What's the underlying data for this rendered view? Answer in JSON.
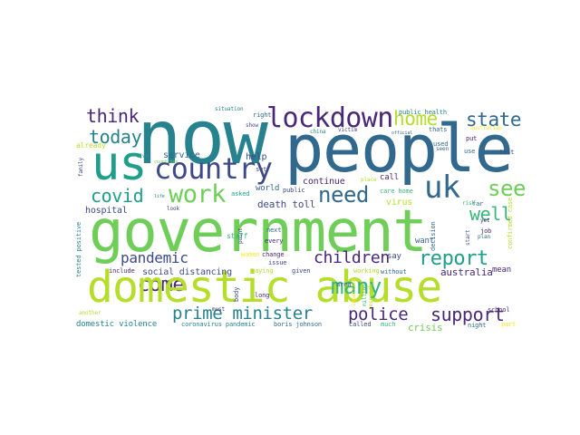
{
  "palette": {
    "dark_purple": "#440154",
    "indigo": "#482878",
    "blue": "#3e4989",
    "steel": "#31688e",
    "teal_blue": "#26828e",
    "teal": "#1f9e89",
    "green": "#35b779",
    "light_green": "#6ece58",
    "lime": "#b5de2b",
    "yellow": "#fde725"
  },
  "words": [
    {
      "text": "now",
      "color": "#26828e"
    },
    {
      "text": "people",
      "color": "#31688e"
    },
    {
      "text": "us",
      "color": "#1f9e89"
    },
    {
      "text": "country",
      "color": "#3e4989"
    },
    {
      "text": "lockdown",
      "color": "#482878"
    },
    {
      "text": "home",
      "color": "#b5de2b"
    },
    {
      "text": "state",
      "color": "#31688e"
    },
    {
      "text": "think",
      "color": "#482878"
    },
    {
      "text": "today",
      "color": "#26828e"
    },
    {
      "text": "work",
      "color": "#6ece58"
    },
    {
      "text": "need",
      "color": "#31688e"
    },
    {
      "text": "uk",
      "color": "#31688e"
    },
    {
      "text": "covid",
      "color": "#1f9e89"
    },
    {
      "text": "see",
      "color": "#6ece58"
    },
    {
      "text": "well",
      "color": "#35b779"
    },
    {
      "text": "government",
      "color": "#6ece58"
    },
    {
      "text": "pandemic",
      "color": "#3e4989"
    },
    {
      "text": "children",
      "color": "#482878"
    },
    {
      "text": "report",
      "color": "#1f9e89"
    },
    {
      "text": "come",
      "color": "#482878"
    },
    {
      "text": "domestic abuse",
      "color": "#b5de2b"
    },
    {
      "text": "many",
      "color": "#35b779"
    },
    {
      "text": "prime minister",
      "color": "#26828e"
    },
    {
      "text": "police",
      "color": "#482878"
    },
    {
      "text": "support",
      "color": "#482878"
    },
    {
      "text": "crisis",
      "color": "#6ece58"
    },
    {
      "text": "social distancing",
      "color": "#3e4989"
    },
    {
      "text": "australia",
      "color": "#482878"
    },
    {
      "text": "death toll",
      "color": "#3e4989"
    },
    {
      "text": "hospital",
      "color": "#3e4989"
    },
    {
      "text": "service",
      "color": "#31688e"
    },
    {
      "text": "help",
      "color": "#3e4989"
    },
    {
      "text": "continue",
      "color": "#482878"
    },
    {
      "text": "world",
      "color": "#31688e"
    },
    {
      "text": "virus",
      "color": "#b5de2b"
    },
    {
      "text": "call",
      "color": "#482878"
    },
    {
      "text": "want",
      "color": "#31688e"
    },
    {
      "text": "say",
      "color": "#3e4989"
    },
    {
      "text": "domestic violence",
      "color": "#26828e"
    },
    {
      "text": "coronavirus pandemic",
      "color": "#26828e"
    },
    {
      "text": "boris johnson",
      "color": "#31688e"
    },
    {
      "text": "mean",
      "color": "#482878"
    },
    {
      "text": "already",
      "color": "#b5de2b"
    },
    {
      "text": "staff",
      "color": "#35b779"
    },
    {
      "text": "public health",
      "color": "#26828e"
    },
    {
      "text": "right",
      "color": "#31688e"
    },
    {
      "text": "situation",
      "color": "#26828e"
    },
    {
      "text": "china",
      "color": "#26828e"
    },
    {
      "text": "victim",
      "color": "#3e4989"
    },
    {
      "text": "used",
      "color": "#31688e"
    },
    {
      "text": "seen",
      "color": "#31688e"
    },
    {
      "text": "use",
      "color": "#31688e"
    },
    {
      "text": "put",
      "color": "#482878"
    },
    {
      "text": "test",
      "color": "#3e4989"
    },
    {
      "text": "public",
      "color": "#3e4989"
    },
    {
      "text": "care home",
      "color": "#35b779"
    },
    {
      "text": "asked",
      "color": "#1f9e89"
    },
    {
      "text": "next",
      "color": "#31688e"
    },
    {
      "text": "every",
      "color": "#482878"
    },
    {
      "text": "change",
      "color": "#482878"
    },
    {
      "text": "given",
      "color": "#3e4989"
    },
    {
      "text": "issue",
      "color": "#3e4989"
    },
    {
      "text": "women",
      "color": "#fde725"
    },
    {
      "text": "saying",
      "color": "#b5de2b"
    },
    {
      "text": "working",
      "color": "#b5de2b"
    },
    {
      "text": "without",
      "color": "#31688e"
    },
    {
      "text": "long",
      "color": "#482878"
    },
    {
      "text": "area",
      "color": "#31688e"
    },
    {
      "text": "called",
      "color": "#3e4989"
    },
    {
      "text": "much",
      "color": "#35b779"
    },
    {
      "text": "night",
      "color": "#31688e"
    },
    {
      "text": "include",
      "color": "#482878"
    },
    {
      "text": "another",
      "color": "#b5de2b"
    },
    {
      "text": "place",
      "color": "#b5de2b"
    },
    {
      "text": "must",
      "color": "#482878"
    },
    {
      "text": "show",
      "color": "#3e4989"
    },
    {
      "text": "live",
      "color": "#1f9e89"
    },
    {
      "text": "look",
      "color": "#3e4989"
    },
    {
      "text": "life",
      "color": "#26828e"
    },
    {
      "text": "set",
      "color": "#3e4989"
    },
    {
      "text": "school",
      "color": "#482878"
    },
    {
      "text": "far",
      "color": "#31688e"
    },
    {
      "text": "risk",
      "color": "#35b779"
    },
    {
      "text": "job",
      "color": "#482878"
    },
    {
      "text": "plan",
      "color": "#31688e"
    },
    {
      "text": "yet",
      "color": "#482878"
    },
    {
      "text": "part",
      "color": "#fde725"
    },
    {
      "text": "thats",
      "color": "#31688e"
    },
    {
      "text": "official",
      "color": "#31688e"
    },
    {
      "text": "australian",
      "color": "#fde725"
    },
    {
      "text": "countries",
      "color": "#6ece58"
    },
    {
      "text": "tested positive",
      "color": "#26828e"
    },
    {
      "text": "family",
      "color": "#3e4989"
    },
    {
      "text": "confirmed case",
      "color": "#b5de2b"
    },
    {
      "text": "decision",
      "color": "#31688e"
    },
    {
      "text": "body",
      "color": "#3e4989"
    },
    {
      "text": "point",
      "color": "#3e4989"
    },
    {
      "text": "start",
      "color": "#3e4989"
    },
    {
      "text": "important",
      "color": "#fde725"
    },
    {
      "text": "research",
      "color": "#b5de2b"
    },
    {
      "text": "million",
      "color": "#35b779"
    }
  ]
}
